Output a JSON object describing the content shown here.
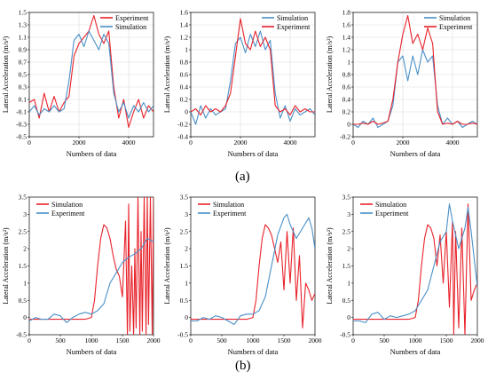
{
  "panel_labels": [
    "(a)",
    "(b)"
  ],
  "colors": {
    "red": "#e8222a",
    "blue": "#4a90c8",
    "grid": "#d9d9d9",
    "axis": "#000000"
  },
  "chart_data": [
    {
      "type": "line",
      "xlabel": "Numbers of data",
      "ylabel": "Lateral Acceleration (m/s²)",
      "xlim": [
        0,
        5000
      ],
      "xticks": [
        0,
        2000,
        4000
      ],
      "ylim": [
        -0.5,
        1.5
      ],
      "yticks": [
        -0.5,
        -0.3,
        -0.1,
        0.1,
        0.3,
        0.5,
        0.7,
        0.9,
        1.1,
        1.3,
        1.5
      ],
      "legend_position": "top-right",
      "grid": true,
      "series": [
        {
          "name": "Experiment",
          "color": "red",
          "x": [
            0,
            200,
            400,
            600,
            800,
            1000,
            1200,
            1400,
            1600,
            1800,
            2000,
            2200,
            2400,
            2600,
            2800,
            3000,
            3200,
            3400,
            3600,
            3800,
            4000,
            4200,
            4400,
            4600,
            4800,
            5000
          ],
          "y": [
            0.05,
            0.1,
            -0.2,
            0.2,
            -0.1,
            0.15,
            -0.1,
            0.05,
            0.15,
            0.8,
            1.0,
            1.1,
            1.2,
            1.45,
            1.15,
            1.0,
            1.2,
            0.3,
            -0.2,
            0.1,
            -0.35,
            -0.1,
            0.1,
            -0.2,
            0.0,
            -0.1
          ]
        },
        {
          "name": "Simulation",
          "color": "blue",
          "x": [
            0,
            200,
            400,
            600,
            800,
            1000,
            1200,
            1400,
            1600,
            1800,
            2000,
            2200,
            2400,
            2600,
            2800,
            3000,
            3200,
            3400,
            3600,
            3800,
            4000,
            4200,
            4400,
            4600,
            4800,
            5000
          ],
          "y": [
            -0.1,
            0.0,
            -0.15,
            -0.05,
            -0.1,
            0.0,
            -0.1,
            -0.05,
            0.4,
            1.05,
            1.15,
            0.95,
            1.2,
            1.05,
            0.9,
            1.15,
            1.0,
            0.2,
            -0.1,
            0.05,
            -0.2,
            0.0,
            -0.1,
            0.05,
            -0.1,
            0.0
          ]
        }
      ]
    },
    {
      "type": "line",
      "xlabel": "Numbers of data",
      "ylabel": "Lateral Acceleration (m/s²)",
      "xlim": [
        0,
        5000
      ],
      "xticks": [
        0,
        2000,
        4000
      ],
      "ylim": [
        -0.4,
        1.6
      ],
      "yticks": [
        -0.4,
        -0.2,
        0,
        0.2,
        0.4,
        0.6,
        0.8,
        1,
        1.2,
        1.4,
        1.6
      ],
      "legend_position": "top-right",
      "grid": true,
      "series": [
        {
          "name": "Simulation",
          "color": "blue",
          "x": [
            0,
            200,
            400,
            600,
            800,
            1000,
            1200,
            1400,
            1600,
            1800,
            2000,
            2200,
            2400,
            2600,
            2800,
            3000,
            3200,
            3400,
            3600,
            3800,
            4000,
            4200,
            4400,
            4600,
            4800,
            5000
          ],
          "y": [
            0.0,
            -0.2,
            0.1,
            -0.1,
            0.05,
            -0.05,
            0.0,
            0.05,
            0.5,
            1.1,
            1.2,
            0.95,
            1.25,
            1.05,
            1.3,
            1.0,
            1.15,
            0.3,
            -0.1,
            0.1,
            -0.15,
            0.05,
            -0.05,
            0.0,
            0.05,
            -0.05
          ]
        },
        {
          "name": "Experiment",
          "color": "red",
          "x": [
            0,
            200,
            400,
            600,
            800,
            1000,
            1200,
            1400,
            1600,
            1800,
            2000,
            2200,
            2400,
            2600,
            2800,
            3000,
            3200,
            3400,
            3600,
            3800,
            4000,
            4200,
            4400,
            4600,
            4800,
            5000
          ],
          "y": [
            0.0,
            0.05,
            -0.05,
            0.1,
            0.0,
            0.05,
            0.0,
            0.1,
            0.3,
            0.9,
            1.5,
            1.1,
            1.0,
            1.3,
            1.05,
            1.2,
            1.0,
            0.1,
            0.0,
            0.05,
            -0.05,
            0.1,
            0.0,
            0.05,
            0.0,
            0.0
          ]
        }
      ]
    },
    {
      "type": "line",
      "xlabel": "Numbers of data",
      "ylabel": "Lateral Acceleration (m/s²)",
      "xlim": [
        0,
        5000
      ],
      "xticks": [
        0,
        2000,
        4000
      ],
      "ylim": [
        -0.2,
        1.8
      ],
      "yticks": [
        -0.2,
        0,
        0.2,
        0.4,
        0.6,
        0.8,
        1,
        1.2,
        1.4,
        1.6,
        1.8
      ],
      "legend_position": "top-right",
      "grid": true,
      "series": [
        {
          "name": "Simulation",
          "color": "blue",
          "x": [
            0,
            200,
            400,
            600,
            800,
            1000,
            1200,
            1400,
            1600,
            1800,
            2000,
            2200,
            2400,
            2600,
            2800,
            3000,
            3200,
            3400,
            3600,
            3800,
            4000,
            4200,
            4400,
            4600,
            4800,
            5000
          ],
          "y": [
            0.0,
            -0.05,
            0.05,
            0.0,
            0.1,
            -0.05,
            0.0,
            0.05,
            0.3,
            1.0,
            1.1,
            0.7,
            1.1,
            0.8,
            1.2,
            1.0,
            1.1,
            0.3,
            0.0,
            0.1,
            0.0,
            0.05,
            -0.05,
            0.0,
            0.05,
            0.0
          ]
        },
        {
          "name": "Experiment",
          "color": "red",
          "x": [
            0,
            200,
            400,
            600,
            800,
            1000,
            1200,
            1400,
            1600,
            1800,
            2000,
            2200,
            2400,
            2600,
            2800,
            3000,
            3200,
            3400,
            3600,
            3800,
            4000,
            4200,
            4400,
            4600,
            4800,
            5000
          ],
          "y": [
            0.0,
            0.0,
            0.02,
            0.0,
            0.05,
            0.0,
            0.02,
            0.05,
            0.4,
            1.0,
            1.45,
            1.75,
            1.3,
            1.45,
            1.2,
            1.55,
            1.3,
            0.2,
            0.0,
            0.02,
            0.0,
            0.05,
            0.0,
            0.0,
            0.02,
            0.0
          ]
        }
      ]
    },
    {
      "type": "line",
      "xlabel": "Numbers of data",
      "ylabel": "Lateral Acceleration (m/s²)",
      "xlim": [
        0,
        2000
      ],
      "xticks": [
        0,
        500,
        1000,
        1500,
        2000
      ],
      "ylim": [
        -0.5,
        3.5
      ],
      "yticks": [
        -0.5,
        0,
        0.5,
        1,
        1.5,
        2,
        2.5,
        3,
        3.5
      ],
      "legend_position": "top-left",
      "grid": false,
      "series": [
        {
          "name": "Simulation",
          "color": "red",
          "x": [
            0,
            100,
            200,
            300,
            400,
            500,
            600,
            700,
            800,
            900,
            1000,
            1050,
            1100,
            1150,
            1200,
            1250,
            1300,
            1350,
            1400,
            1450,
            1500,
            1550,
            1580,
            1600,
            1620,
            1650,
            1680,
            1700,
            1720,
            1750,
            1780,
            1800,
            1820,
            1850,
            1880,
            1900,
            1920,
            1950,
            1980,
            2000
          ],
          "y": [
            -0.05,
            -0.05,
            -0.05,
            -0.05,
            -0.05,
            -0.05,
            -0.05,
            -0.05,
            -0.05,
            -0.05,
            0.0,
            0.5,
            1.5,
            2.3,
            2.7,
            2.6,
            2.3,
            1.8,
            1.4,
            1.2,
            0.6,
            2.8,
            -0.5,
            3.3,
            -0.4,
            1.5,
            -0.5,
            2.0,
            -0.3,
            3.5,
            -0.5,
            2.5,
            -0.4,
            3.5,
            -0.5,
            3.5,
            -0.2,
            3.5,
            -0.5,
            3.5
          ]
        },
        {
          "name": "Experiment",
          "color": "blue",
          "x": [
            0,
            100,
            200,
            300,
            400,
            500,
            600,
            700,
            800,
            900,
            1000,
            1100,
            1200,
            1300,
            1400,
            1500,
            1600,
            1700,
            1800,
            1900,
            2000
          ],
          "y": [
            -0.1,
            0.0,
            -0.05,
            -0.05,
            0.1,
            0.05,
            -0.15,
            0.0,
            0.1,
            0.15,
            0.1,
            0.2,
            0.4,
            1.0,
            1.3,
            1.6,
            1.75,
            1.85,
            2.0,
            2.3,
            2.2
          ]
        }
      ]
    },
    {
      "type": "line",
      "xlabel": "Numbers of data",
      "ylabel": "Lateral Acceleration (m/s²)",
      "xlim": [
        0,
        2000
      ],
      "xticks": [
        0,
        500,
        1000,
        1500,
        2000
      ],
      "ylim": [
        -0.5,
        3.5
      ],
      "yticks": [
        -0.5,
        0,
        0.5,
        1,
        1.5,
        2,
        2.5,
        3,
        3.5
      ],
      "legend_position": "top-left",
      "grid": false,
      "series": [
        {
          "name": "Simulation",
          "color": "red",
          "x": [
            0,
            100,
            200,
            300,
            400,
            500,
            600,
            700,
            800,
            900,
            1000,
            1050,
            1100,
            1150,
            1200,
            1250,
            1300,
            1350,
            1400,
            1450,
            1500,
            1550,
            1600,
            1650,
            1700,
            1750,
            1800,
            1850,
            1900,
            1950,
            2000
          ],
          "y": [
            -0.05,
            -0.05,
            -0.05,
            -0.05,
            -0.05,
            -0.05,
            -0.05,
            -0.05,
            -0.05,
            -0.05,
            0.0,
            0.5,
            1.5,
            2.3,
            2.7,
            2.6,
            2.4,
            2.0,
            1.6,
            2.2,
            0.8,
            2.5,
            1.0,
            2.6,
            0.5,
            1.8,
            -0.3,
            1.0,
            0.8,
            0.5,
            0.7
          ]
        },
        {
          "name": "Experiment",
          "color": "blue",
          "x": [
            0,
            100,
            200,
            300,
            400,
            500,
            600,
            700,
            800,
            900,
            1000,
            1100,
            1200,
            1300,
            1400,
            1500,
            1550,
            1600,
            1700,
            1800,
            1900,
            1950,
            2000
          ],
          "y": [
            -0.1,
            -0.1,
            0.0,
            -0.05,
            0.05,
            0.0,
            -0.1,
            -0.2,
            0.05,
            0.1,
            0.1,
            0.2,
            0.6,
            1.5,
            2.4,
            2.9,
            3.0,
            2.7,
            2.3,
            2.6,
            2.9,
            2.6,
            2.0
          ]
        }
      ]
    },
    {
      "type": "line",
      "xlabel": "Numbers of data",
      "ylabel": "Lateral Acceleration (m/s²)",
      "xlim": [
        0,
        2000
      ],
      "xticks": [
        0,
        500,
        1000,
        1500,
        2000
      ],
      "ylim": [
        -0.5,
        3.5
      ],
      "yticks": [
        -0.5,
        0,
        0.5,
        1,
        1.5,
        2,
        2.5,
        3,
        3.5
      ],
      "legend_position": "top-left",
      "grid": false,
      "series": [
        {
          "name": "Simulation",
          "color": "red",
          "x": [
            0,
            100,
            200,
            300,
            400,
            500,
            600,
            700,
            800,
            900,
            1000,
            1050,
            1100,
            1150,
            1200,
            1250,
            1300,
            1350,
            1400,
            1450,
            1500,
            1550,
            1600,
            1620,
            1650,
            1700,
            1750,
            1800,
            1850,
            1900,
            1950,
            2000
          ],
          "y": [
            -0.05,
            -0.05,
            -0.05,
            -0.05,
            -0.05,
            -0.05,
            -0.05,
            -0.05,
            -0.05,
            -0.05,
            0.0,
            0.5,
            1.5,
            2.3,
            2.7,
            2.6,
            2.3,
            1.5,
            2.4,
            1.0,
            2.5,
            0.3,
            2.8,
            -0.5,
            2.5,
            -0.3,
            2.6,
            -0.5,
            3.3,
            0.5,
            0.8,
            1.0
          ]
        },
        {
          "name": "Experiment",
          "color": "blue",
          "x": [
            0,
            100,
            200,
            300,
            400,
            500,
            600,
            700,
            800,
            900,
            1000,
            1100,
            1200,
            1300,
            1400,
            1500,
            1550,
            1600,
            1700,
            1800,
            1850,
            1900,
            2000
          ],
          "y": [
            -0.1,
            -0.1,
            -0.15,
            0.1,
            0.15,
            -0.05,
            0.05,
            0.0,
            0.05,
            0.1,
            0.2,
            0.5,
            0.8,
            1.5,
            2.2,
            2.5,
            3.3,
            2.8,
            2.0,
            2.6,
            3.2,
            2.5,
            0.9
          ]
        }
      ]
    }
  ]
}
